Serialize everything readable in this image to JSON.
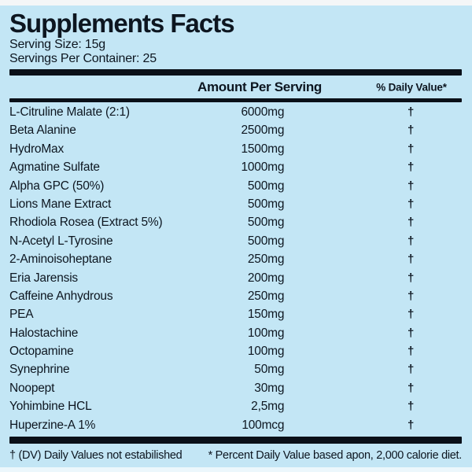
{
  "colors": {
    "background": "#c3e6f5",
    "text": "#0d1620",
    "bar": "#0a1018",
    "top_strip": "#f4f6f7",
    "bottom_strip": "#ecf7fc"
  },
  "header": {
    "title": "Supplements Facts",
    "serving_size": "Serving Size: 15g",
    "servings_per_container": "Servings Per Container: 25"
  },
  "table": {
    "columns": {
      "amount": "Amount Per Serving",
      "daily_value": "% Daily Value*"
    },
    "rows": [
      {
        "name": "L-Citruline Malate (2:1)",
        "amount": "6000mg",
        "dv": "†"
      },
      {
        "name": "Beta Alanine",
        "amount": "2500mg",
        "dv": "†"
      },
      {
        "name": "HydroMax",
        "amount": "1500mg",
        "dv": "†"
      },
      {
        "name": "Agmatine Sulfate",
        "amount": "1000mg",
        "dv": "†"
      },
      {
        "name": "Alpha GPC (50%)",
        "amount": "500mg",
        "dv": "†"
      },
      {
        "name": "Lions Mane Extract",
        "amount": "500mg",
        "dv": "†"
      },
      {
        "name": "Rhodiola Rosea (Extract 5%)",
        "amount": "500mg",
        "dv": "†"
      },
      {
        "name": "N-Acetyl L-Tyrosine",
        "amount": "500mg",
        "dv": "†"
      },
      {
        "name": "2-Aminoisoheptane",
        "amount": "250mg",
        "dv": "†"
      },
      {
        "name": "Eria Jarensis",
        "amount": "200mg",
        "dv": "†"
      },
      {
        "name": "Caffeine Anhydrous",
        "amount": "250mg",
        "dv": "†"
      },
      {
        "name": "PEA",
        "amount": "150mg",
        "dv": "†"
      },
      {
        "name": "Halostachine",
        "amount": "100mg",
        "dv": "†"
      },
      {
        "name": "Octopamine",
        "amount": "100mg",
        "dv": "†"
      },
      {
        "name": "Synephrine",
        "amount": "50mg",
        "dv": "†"
      },
      {
        "name": "Noopept",
        "amount": "30mg",
        "dv": "†"
      },
      {
        "name": "Yohimbine HCL",
        "amount": "2,5mg",
        "dv": "†"
      },
      {
        "name": "Huperzine-A 1%",
        "amount": "100mcg",
        "dv": "†"
      }
    ]
  },
  "footnotes": {
    "left": "† (DV) Daily Values not estabilished",
    "right": "* Percent Daily Value based apon, 2,000 calorie diet."
  }
}
